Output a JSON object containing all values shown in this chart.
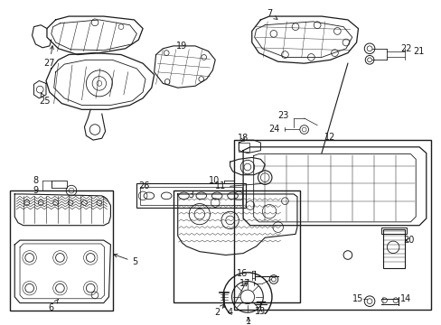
{
  "background_color": "#ffffff",
  "line_color": "#1a1a1a",
  "fig_width": 4.89,
  "fig_height": 3.6,
  "dpi": 100,
  "font_size": 7.0,
  "gray_fill": "#e8e8e8",
  "light_gray": "#d0d0d0"
}
